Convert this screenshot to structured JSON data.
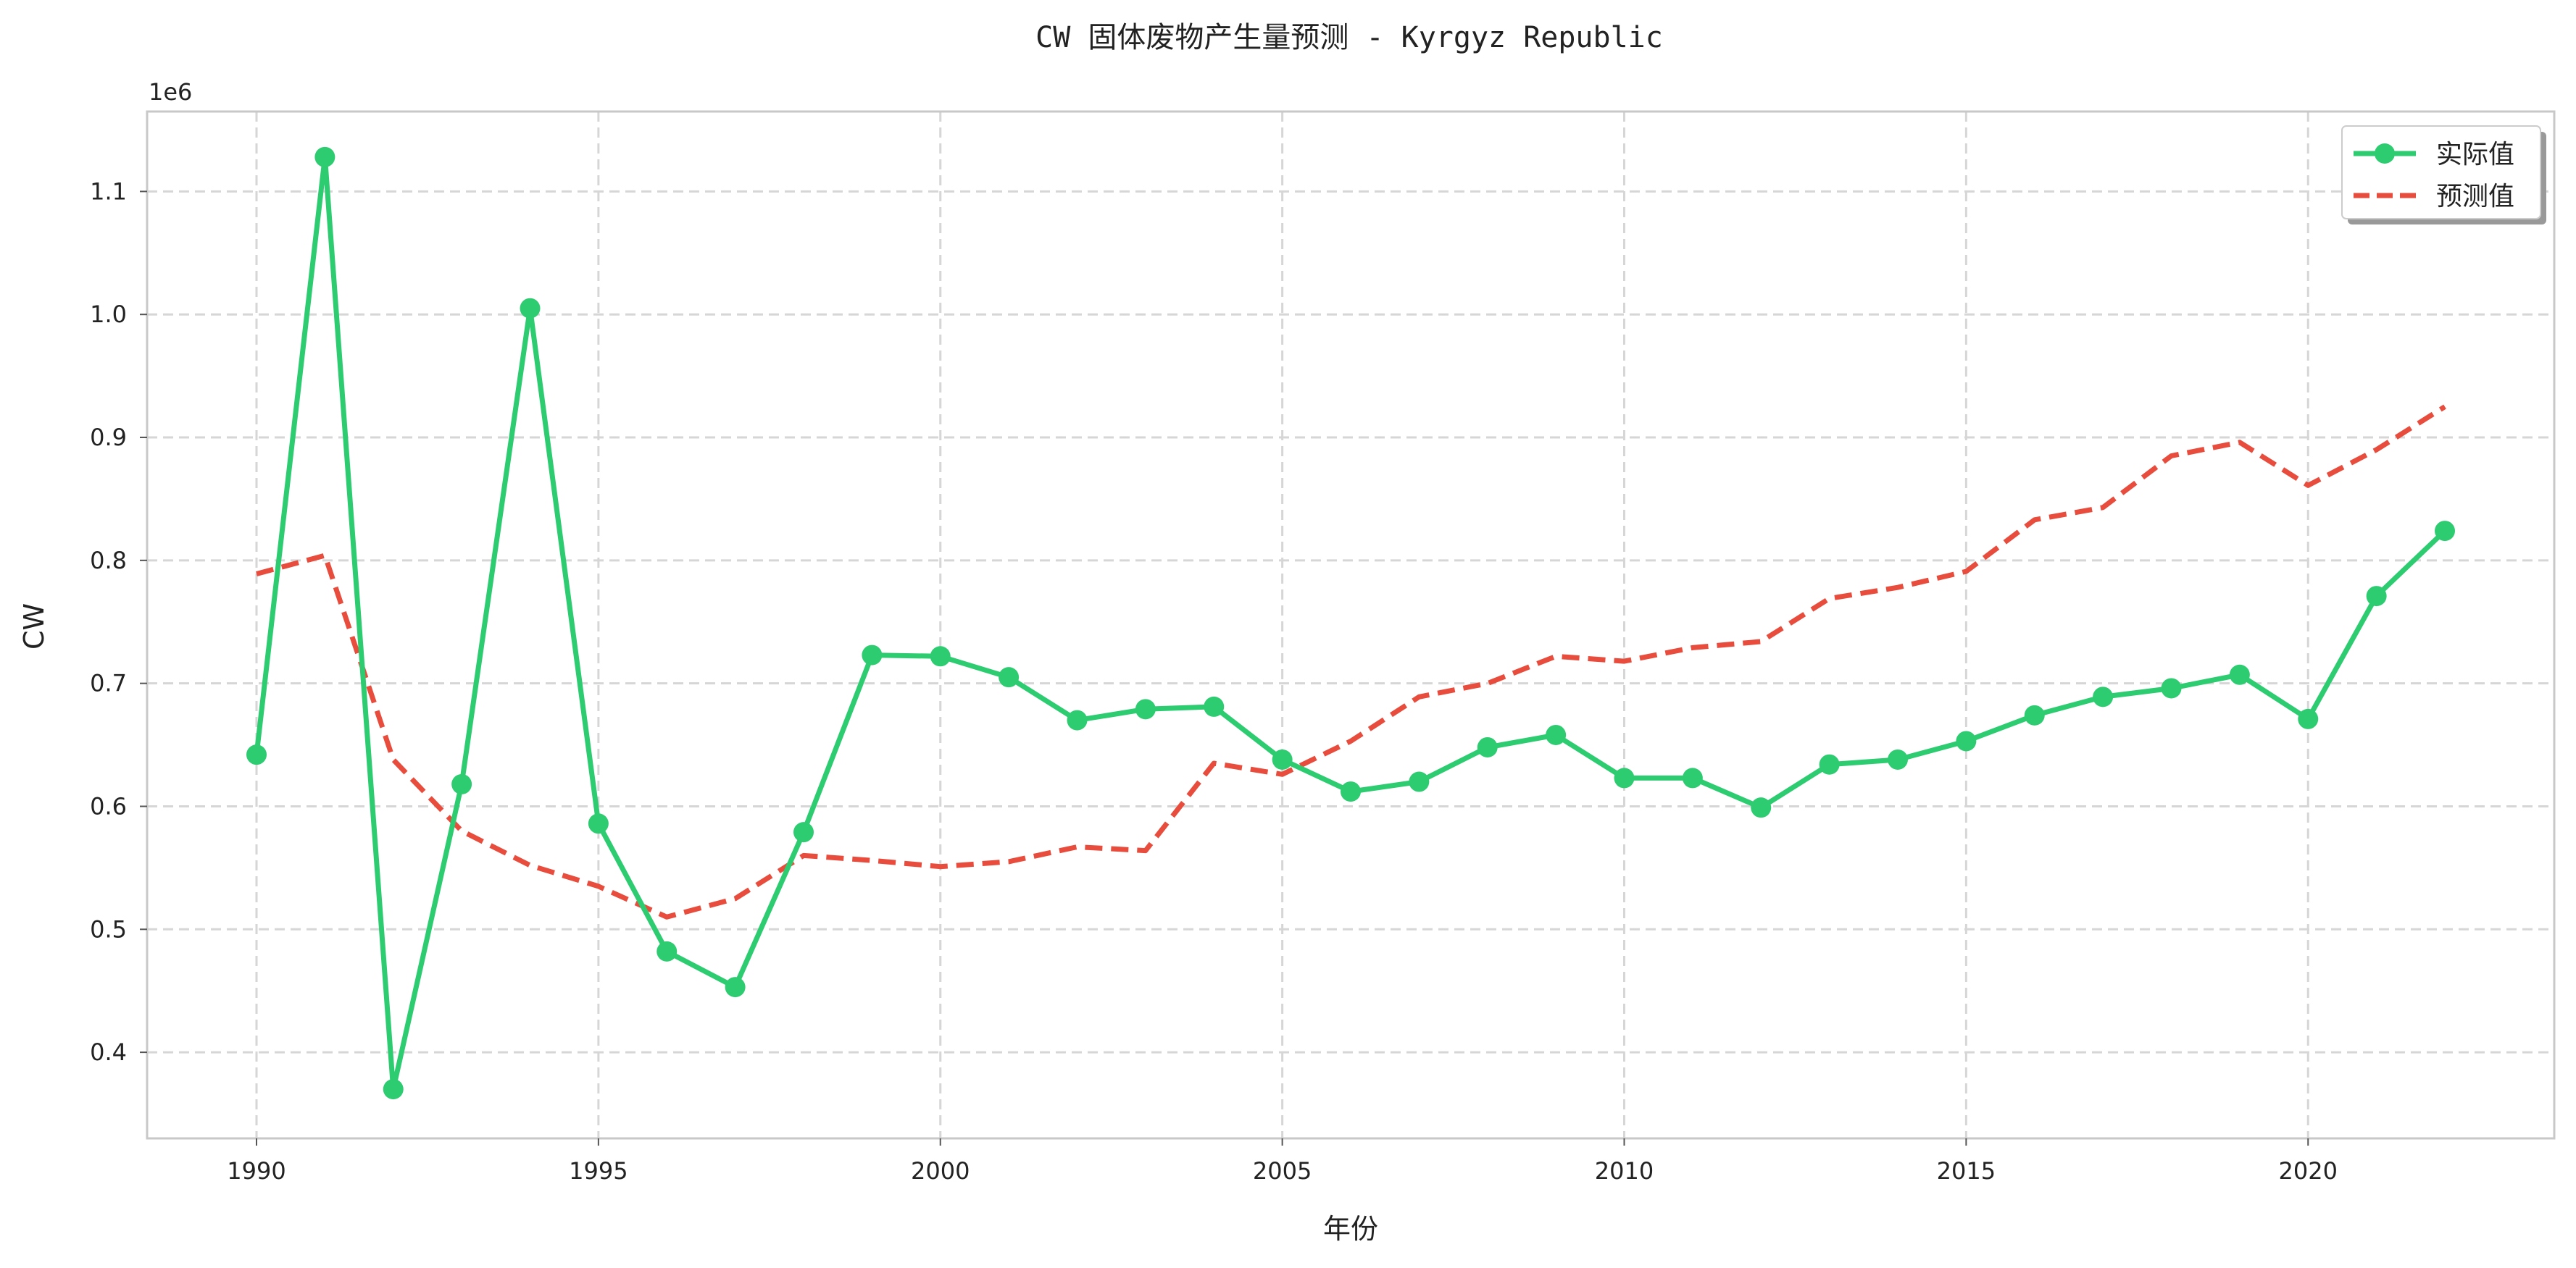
{
  "chart_data": {
    "type": "line",
    "title": "CW 固体废物产生量预测 - Kyrgyz Republic",
    "xlabel": "年份",
    "ylabel": "CW",
    "y_multiplier_label": "1e6",
    "x_ticks": [
      1990,
      1995,
      2000,
      2005,
      2010,
      2015,
      2020
    ],
    "y_ticks": [
      0.4,
      0.5,
      0.6,
      0.7,
      0.8,
      0.9,
      1.0,
      1.1
    ],
    "y_tick_labels": [
      "0.4",
      "0.5",
      "0.6",
      "0.7",
      "0.8",
      "0.9",
      "1.0",
      "1.1"
    ],
    "xlim": [
      1988.4,
      2023.6
    ],
    "ylim": [
      0.33,
      1.165
    ],
    "grid": true,
    "legend_position": "top-right",
    "x": [
      1990,
      1991,
      1992,
      1993,
      1994,
      1995,
      1996,
      1997,
      1998,
      1999,
      2000,
      2001,
      2002,
      2003,
      2004,
      2005,
      2006,
      2007,
      2008,
      2009,
      2010,
      2011,
      2012,
      2013,
      2014,
      2015,
      2016,
      2017,
      2018,
      2019,
      2020,
      2021,
      2022
    ],
    "series": [
      {
        "name": "实际值",
        "color": "#2ecc71",
        "style": "solid-with-markers",
        "values": [
          0.642,
          1.128,
          0.37,
          0.618,
          1.005,
          0.586,
          0.482,
          0.453,
          0.579,
          0.723,
          0.722,
          0.705,
          0.67,
          0.679,
          0.681,
          0.638,
          0.612,
          0.62,
          0.648,
          0.658,
          0.623,
          0.623,
          0.599,
          0.634,
          0.638,
          0.653,
          0.674,
          0.689,
          0.696,
          0.707,
          0.671,
          0.771,
          0.824
        ]
      },
      {
        "name": "预测值",
        "color": "#e74c3c",
        "style": "dashed",
        "values": [
          0.789,
          0.804,
          0.638,
          0.58,
          0.552,
          0.535,
          0.51,
          0.525,
          0.56,
          0.556,
          0.551,
          0.555,
          0.567,
          0.564,
          0.635,
          0.626,
          0.653,
          0.689,
          0.7,
          0.722,
          0.718,
          0.729,
          0.734,
          0.769,
          0.778,
          0.791,
          0.833,
          0.843,
          0.885,
          0.896,
          0.861,
          0.89,
          0.925
        ]
      }
    ]
  }
}
